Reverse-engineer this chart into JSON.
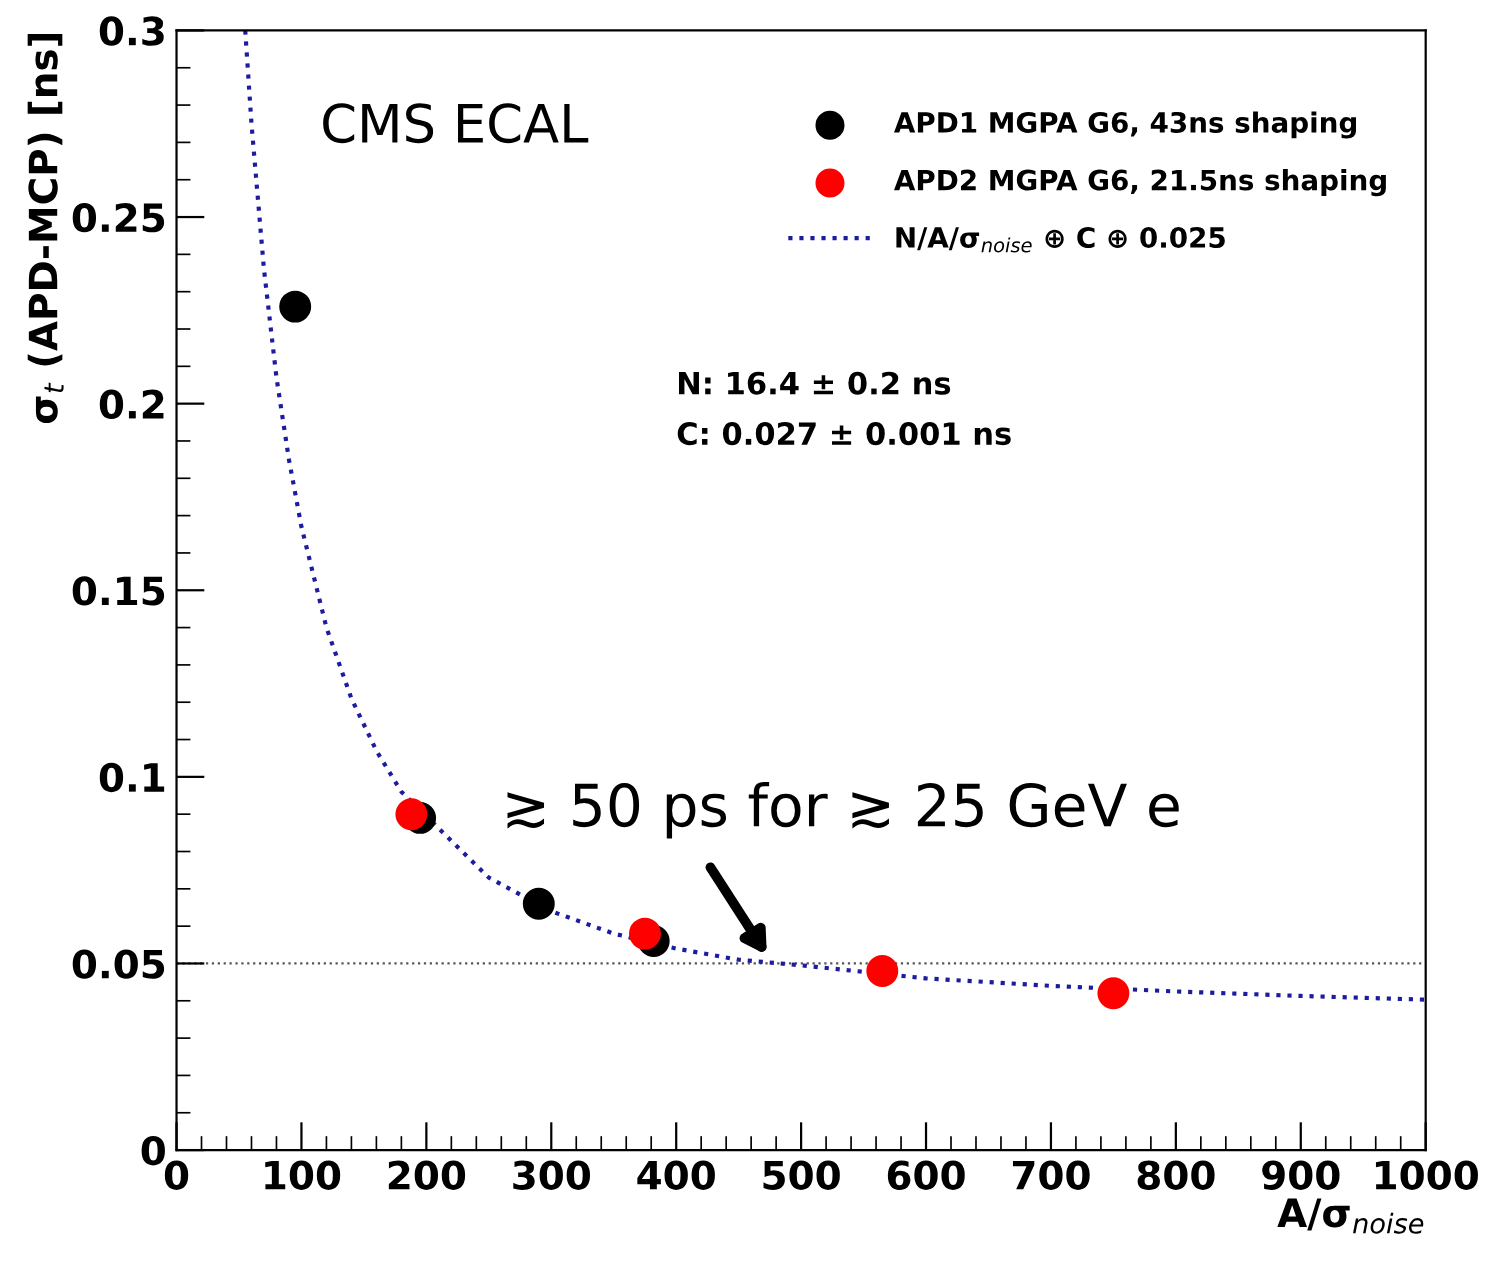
{
  "chart_data": {
    "type": "scatter",
    "xlabel": "A/σ$_{noise}$",
    "ylabel": "σ$_{t}$ (APD-MCP) [ns]",
    "xlim": [
      0,
      1000
    ],
    "xticks": [
      0,
      100,
      200,
      300,
      400,
      500,
      600,
      700,
      800,
      900,
      1000
    ],
    "ylim": [
      0,
      0.3
    ],
    "yticks": [
      0,
      0.05,
      0.1,
      0.15,
      0.2,
      0.25,
      0.3
    ],
    "grid": false,
    "legend": "top right",
    "series": [
      {
        "name": "APD1 MGPA G6, 43ns shaping",
        "marker": "circle",
        "color": "#000000",
        "x": [
          95,
          195,
          290,
          382
        ],
        "values": [
          0.226,
          0.089,
          0.066,
          0.056
        ],
        "errors": [
          0.004,
          null,
          null,
          null
        ]
      },
      {
        "name": "APD2 MGPA G6, 21.5ns shaping",
        "marker": "circle",
        "color": "#ff0000",
        "x": [
          188,
          375,
          565,
          750
        ],
        "values": [
          0.09,
          0.058,
          0.048,
          0.042
        ]
      },
      {
        "name": "N/A/σ$_{noise}$ ⊕ C ⊕ 0.025",
        "type": "line",
        "line_style": "dotted",
        "color": "#1c1ca0",
        "x": [
          55,
          60,
          70,
          80,
          90,
          100,
          120,
          140,
          160,
          180,
          250,
          300,
          350,
          400,
          450,
          500,
          600,
          700,
          800,
          900,
          1000
        ],
        "values": [
          0.3,
          0.275,
          0.236,
          0.207,
          0.185,
          0.167,
          0.14,
          0.121,
          0.107,
          0.096,
          0.073,
          0.064,
          0.058,
          0.054,
          0.051,
          0.0495,
          0.046,
          0.044,
          0.0425,
          0.0413,
          0.0403
        ]
      }
    ],
    "ref_lines": [
      {
        "axis": "y",
        "value": 0.05,
        "color": "#555555",
        "line_style": "dotted"
      }
    ],
    "annotations": [
      "CMS ECAL",
      "N: 16.4 ± 0.2 ns",
      "C: 0.027 ± 0.001 ns",
      {
        "text": "≳ 50 ps for ≳ 25 GeV e",
        "x": 475,
        "y": 0.051
      }
    ]
  }
}
